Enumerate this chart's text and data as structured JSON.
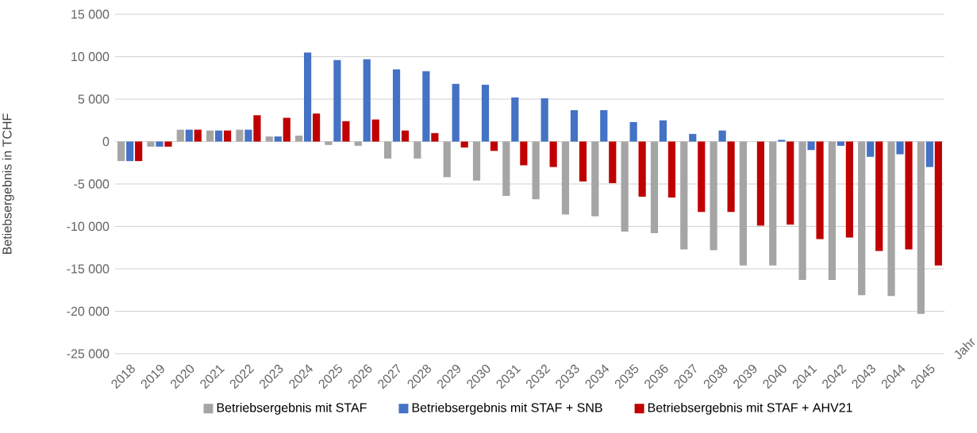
{
  "chart_data": {
    "type": "bar",
    "xlabel": "Jahr",
    "ylabel": "Betiebsergebnis in TCHF",
    "categories": [
      "2018",
      "2019",
      "2020",
      "2021",
      "2022",
      "2023",
      "2024",
      "2025",
      "2026",
      "2027",
      "2028",
      "2029",
      "2030",
      "2031",
      "2032",
      "2033",
      "2034",
      "2035",
      "2036",
      "2037",
      "2038",
      "2039",
      "2040",
      "2041",
      "2042",
      "2043",
      "2044",
      "2045"
    ],
    "series": [
      {
        "name": "Betriebsergebnis mit STAF",
        "color": "#a5a5a5",
        "values": [
          -2300,
          -600,
          1400,
          1300,
          1400,
          600,
          700,
          -400,
          -500,
          -2000,
          -2000,
          -4200,
          -4600,
          -6400,
          -6800,
          -8600,
          -8800,
          -10600,
          -10800,
          -12700,
          -12800,
          -14600,
          -14600,
          -16300,
          -16300,
          -18100,
          -18200,
          -20300
        ]
      },
      {
        "name": "Betriebsergebnis mit STAF + SNB",
        "color": "#4472c4",
        "values": [
          -2300,
          -600,
          1400,
          1300,
          1400,
          600,
          10500,
          9600,
          9700,
          8500,
          8300,
          6800,
          6700,
          5200,
          5100,
          3700,
          3700,
          2300,
          2500,
          900,
          1300,
          0,
          200,
          -1000,
          -500,
          -1800,
          -1500,
          -3000
        ]
      },
      {
        "name": "Betriebsergebnis mit STAF + AHV21",
        "color": "#c00000",
        "values": [
          -2300,
          -600,
          1400,
          1300,
          3100,
          2800,
          3300,
          2400,
          2600,
          1300,
          1000,
          -700,
          -1100,
          -2800,
          -3000,
          -4700,
          -4900,
          -6500,
          -6600,
          -8300,
          -8300,
          -9900,
          -9800,
          -11500,
          -11300,
          -12900,
          -12700,
          -14600
        ]
      }
    ],
    "ylim": [
      -25000,
      15000
    ],
    "yticks": [
      {
        "value": -25000,
        "label": "-25 000"
      },
      {
        "value": -20000,
        "label": "-20 000"
      },
      {
        "value": -15000,
        "label": "-15 000"
      },
      {
        "value": -10000,
        "label": "-10 000"
      },
      {
        "value": -5000,
        "label": "-5 000"
      },
      0,
      {
        "value": 5000,
        "label": "5 000"
      },
      {
        "value": 10000,
        "label": "10 000"
      },
      {
        "value": 15000,
        "label": "15 000"
      }
    ],
    "grid": "y",
    "legend": "bottom"
  }
}
